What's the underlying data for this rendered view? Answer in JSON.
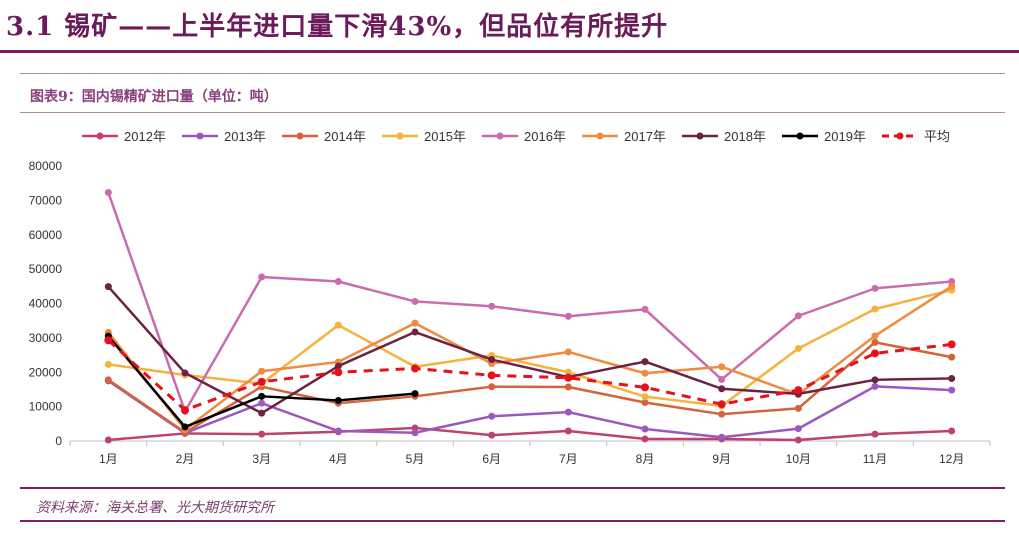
{
  "header": {
    "title": "3.1 锡矿——上半年进口量下滑43%，但品位有所提升"
  },
  "figure": {
    "caption": "图表9：国内锡精矿进口量（单位：吨）",
    "source": "资料来源：海关总署、光大期货研究所"
  },
  "chart_data": {
    "type": "line",
    "title": "国内锡精矿进口量（单位：吨）",
    "xlabel": "",
    "ylabel": "",
    "ylim": [
      0,
      80000
    ],
    "yticks": [
      0,
      10000,
      20000,
      30000,
      40000,
      50000,
      60000,
      70000,
      80000
    ],
    "categories": [
      "1月",
      "2月",
      "3月",
      "4月",
      "5月",
      "6月",
      "7月",
      "8月",
      "9月",
      "10月",
      "11月",
      "12月"
    ],
    "legend_position": "top",
    "series": [
      {
        "name": "2012年",
        "color": "#c0416e",
        "style": "solid",
        "values": [
          300,
          2200,
          2000,
          2700,
          3800,
          1700,
          2900,
          600,
          600,
          300,
          2000,
          2900
        ]
      },
      {
        "name": "2013年",
        "color": "#9b59c0",
        "style": "solid",
        "values": [
          17500,
          2300,
          11000,
          2900,
          2400,
          7200,
          8400,
          3500,
          1100,
          3600,
          15900,
          14800
        ]
      },
      {
        "name": "2014年",
        "color": "#d4633a",
        "style": "solid",
        "values": [
          17800,
          2500,
          15800,
          11000,
          13000,
          15800,
          15700,
          11200,
          7800,
          9500,
          28700,
          24400
        ]
      },
      {
        "name": "2015年",
        "color": "#f5b23d",
        "style": "solid",
        "values": [
          22300,
          19200,
          16700,
          33700,
          21600,
          24900,
          20000,
          12900,
          10200,
          26900,
          38400,
          43900
        ]
      },
      {
        "name": "2016年",
        "color": "#cc6aae",
        "style": "solid",
        "values": [
          72300,
          8600,
          47700,
          46400,
          40600,
          39200,
          36300,
          38300,
          17900,
          36400,
          44400,
          46400
        ]
      },
      {
        "name": "2017年",
        "color": "#f08a3f",
        "style": "solid",
        "values": [
          31600,
          3300,
          20300,
          23000,
          34300,
          22500,
          25900,
          19700,
          21600,
          13500,
          30600,
          45000
        ]
      },
      {
        "name": "2018年",
        "color": "#6e2141",
        "style": "solid",
        "values": [
          44900,
          19800,
          8100,
          21800,
          31700,
          23700,
          18600,
          23100,
          15200,
          13700,
          17800,
          18200
        ]
      },
      {
        "name": "2019年",
        "color": "#000000",
        "style": "solid",
        "values": [
          30500,
          4100,
          13000,
          11800,
          13800,
          null,
          null,
          null,
          null,
          null,
          null,
          null
        ]
      },
      {
        "name": "平均",
        "color": "#e8101a",
        "style": "dashed",
        "values": [
          29300,
          9000,
          17200,
          20000,
          21100,
          19100,
          18400,
          15600,
          10700,
          14800,
          25500,
          28100
        ]
      }
    ]
  }
}
